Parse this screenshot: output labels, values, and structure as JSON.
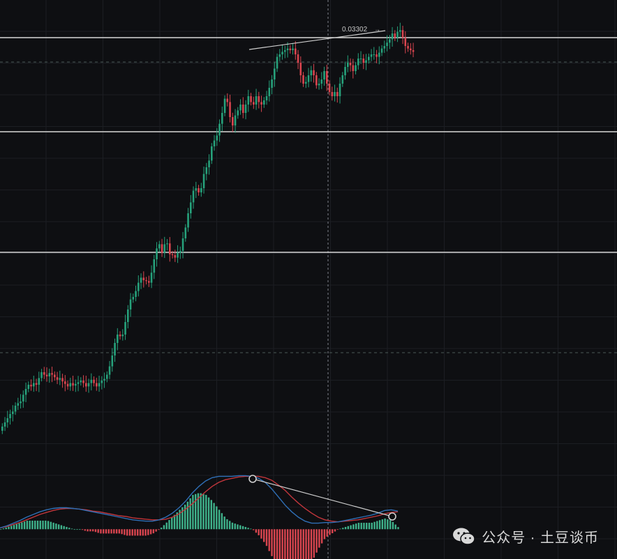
{
  "chart_data": {
    "type": "candlestick",
    "price_annotation": "0.03302",
    "colors": {
      "background": "#0e0f12",
      "grid": "#1c1e23",
      "up": "#26a17b",
      "down": "#d9454f",
      "macd_line": "#2f6fb6",
      "signal_line": "#c2363c",
      "hist_up": "#3fb28b",
      "hist_down": "#d9454f",
      "level_line": "#d8d8d8",
      "trendline": "#cfcfcf",
      "dashed": "#4b5a55",
      "crosshair": "#7d8189"
    },
    "grid": true,
    "horizontal_levels": [
      0.03302,
      0.0325,
      0.0318
    ],
    "dashed_levels": [
      0.0328,
      0.0312
    ],
    "price_range": [
      0.0308,
      0.03345
    ],
    "candle_closes": [
      0.0312,
      0.03125,
      0.0313,
      0.03135,
      0.03138,
      0.03145,
      0.03148,
      0.0315,
      0.03158,
      0.03165,
      0.0317,
      0.03168,
      0.03172,
      0.0317,
      0.03178,
      0.03185,
      0.03182,
      0.0318,
      0.03184,
      0.03182,
      0.03179,
      0.03176,
      0.03178,
      0.03174,
      0.03171,
      0.03168,
      0.03172,
      0.03169,
      0.03171,
      0.03173,
      0.03175,
      0.03172,
      0.03168,
      0.03172,
      0.03176,
      0.03172,
      0.03168,
      0.03172,
      0.03175,
      0.03177,
      0.03182,
      0.03192,
      0.03205,
      0.0322,
      0.0323,
      0.03228,
      0.0323,
      0.03245,
      0.0326,
      0.03272,
      0.03275,
      0.03282,
      0.03292,
      0.03298,
      0.03295,
      0.03294,
      0.03292,
      0.03304,
      0.0332,
      0.03333,
      0.03338,
      0.03328,
      0.03338,
      0.03339,
      0.03326,
      0.03325,
      0.03322,
      0.03328,
      0.0333,
      0.03345,
      0.03358,
      0.03375,
      0.03388,
      0.03402,
      0.03405,
      0.034,
      0.03405,
      0.03422,
      0.0343,
      0.03438,
      0.03455,
      0.03462,
      0.03468,
      0.03482,
      0.03495,
      0.03512,
      0.03508,
      0.0349,
      0.0348,
      0.03492,
      0.03498,
      0.03505,
      0.03495,
      0.03505,
      0.03515,
      0.03508,
      0.03505,
      0.03515,
      0.03508,
      0.03505,
      0.0351,
      0.03515,
      0.03525,
      0.03535,
      0.03548,
      0.03562,
      0.03565,
      0.03568,
      0.0357,
      0.03572,
      0.0357,
      0.03572,
      0.03565,
      0.03555,
      0.0354,
      0.0353,
      0.03532,
      0.0354,
      0.03546,
      0.0354,
      0.03528,
      0.0353,
      0.03535,
      0.03545,
      0.0353,
      0.0352,
      0.03515,
      0.0352,
      0.03515,
      0.0353,
      0.0354,
      0.0355,
      0.03555,
      0.03552,
      0.03545,
      0.03552,
      0.0356,
      0.0356,
      0.03555,
      0.03558,
      0.03562,
      0.03565,
      0.03565,
      0.03562,
      0.03567,
      0.03572,
      0.03575,
      0.03579,
      0.03583,
      0.0359,
      0.03585,
      0.03592,
      0.03594,
      0.03585,
      0.03575,
      0.03572,
      0.0357,
      0.03568
    ],
    "macd_values": [
      0.2,
      0.5,
      0.9,
      1.3,
      1.8,
      2.2,
      2.6,
      2.9,
      3.1,
      3.2,
      3.2,
      3.1,
      3.0,
      2.8,
      2.6,
      2.4,
      2.2,
      2.0,
      1.8,
      1.6,
      1.4,
      1.3,
      1.2,
      1.2,
      1.4,
      1.8,
      2.4,
      3.2,
      4.2,
      5.4,
      6.4,
      7.2,
      7.7,
      7.9,
      7.9,
      7.9,
      8.0,
      8.0,
      7.9,
      7.6,
      7.0,
      6.0,
      4.8,
      3.6,
      2.6,
      1.8,
      1.2,
      0.9,
      0.9,
      1.0,
      1.0,
      1.1,
      1.3,
      1.5,
      1.7,
      1.9,
      2.1,
      2.4,
      2.8,
      2.9,
      2.7
    ],
    "signal_values": [
      0.2,
      0.4,
      0.7,
      1.0,
      1.4,
      1.8,
      2.2,
      2.5,
      2.8,
      3.0,
      3.1,
      3.1,
      3.0,
      2.9,
      2.7,
      2.6,
      2.4,
      2.2,
      2.0,
      1.9,
      1.7,
      1.6,
      1.5,
      1.4,
      1.4,
      1.5,
      1.8,
      2.3,
      3.0,
      3.8,
      4.7,
      5.6,
      6.4,
      7.0,
      7.4,
      7.6,
      7.8,
      7.9,
      7.9,
      7.9,
      7.7,
      7.3,
      6.6,
      5.8,
      4.8,
      3.9,
      3.1,
      2.4,
      1.8,
      1.4,
      1.2,
      1.1,
      1.2,
      1.3,
      1.4,
      1.6,
      1.8,
      2.0,
      2.3,
      2.5,
      2.6
    ],
    "macd_range": [
      -3.2,
      9.5
    ],
    "divergence_points": [
      {
        "bar": 87,
        "value": 7.9
      },
      {
        "bar": 135,
        "value": 2.8
      }
    ],
    "price_divergence": [
      {
        "bar": 87,
        "price": 0.03568
      },
      {
        "bar": 135,
        "price": 0.03614
      }
    ]
  },
  "watermark": {
    "text": "公众号 · 土豆谈币",
    "icon": "wechat-icon"
  }
}
